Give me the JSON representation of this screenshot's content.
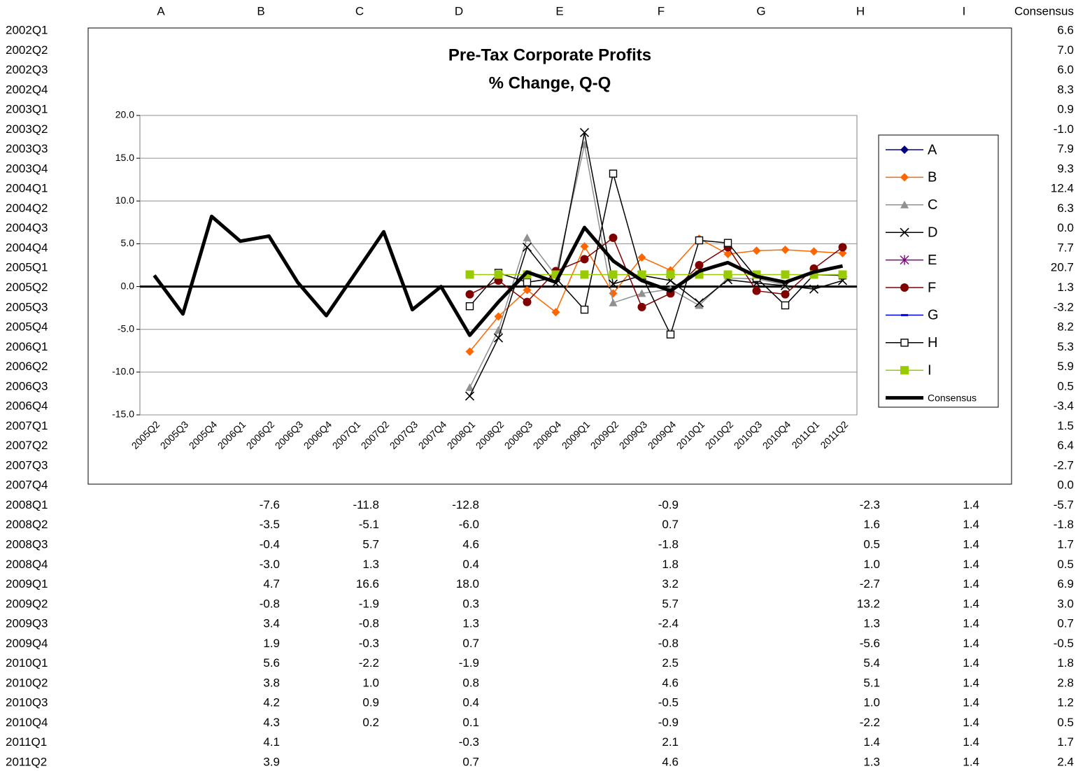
{
  "sheet": {
    "columns": [
      "A",
      "B",
      "C",
      "D",
      "E",
      "F",
      "G",
      "H",
      "I",
      "Consensus"
    ],
    "rows": [
      {
        "label": "2002Q1",
        "cells": [
          null,
          null,
          null,
          null,
          null,
          null,
          null,
          null,
          null,
          "6.6"
        ]
      },
      {
        "label": "2002Q2",
        "cells": [
          null,
          null,
          null,
          null,
          null,
          null,
          null,
          null,
          null,
          "7.0"
        ]
      },
      {
        "label": "2002Q3",
        "cells": [
          null,
          null,
          null,
          null,
          null,
          null,
          null,
          null,
          null,
          "6.0"
        ]
      },
      {
        "label": "2002Q4",
        "cells": [
          null,
          null,
          null,
          null,
          null,
          null,
          null,
          null,
          null,
          "8.3"
        ]
      },
      {
        "label": "2003Q1",
        "cells": [
          null,
          null,
          null,
          null,
          null,
          null,
          null,
          null,
          null,
          "0.9"
        ]
      },
      {
        "label": "2003Q2",
        "cells": [
          null,
          null,
          null,
          null,
          null,
          null,
          null,
          null,
          null,
          "-1.0"
        ]
      },
      {
        "label": "2003Q3",
        "cells": [
          null,
          null,
          null,
          null,
          null,
          null,
          null,
          null,
          null,
          "7.9"
        ]
      },
      {
        "label": "2003Q4",
        "cells": [
          null,
          null,
          null,
          null,
          null,
          null,
          null,
          null,
          null,
          "9.3"
        ]
      },
      {
        "label": "2004Q1",
        "cells": [
          null,
          null,
          null,
          null,
          null,
          null,
          null,
          null,
          null,
          "12.4"
        ]
      },
      {
        "label": "2004Q2",
        "cells": [
          null,
          null,
          null,
          null,
          null,
          null,
          null,
          null,
          null,
          "6.3"
        ]
      },
      {
        "label": "2004Q3",
        "cells": [
          null,
          null,
          null,
          null,
          null,
          null,
          null,
          null,
          null,
          "0.0"
        ]
      },
      {
        "label": "2004Q4",
        "cells": [
          null,
          null,
          null,
          null,
          null,
          null,
          null,
          null,
          null,
          "7.7"
        ]
      },
      {
        "label": "2005Q1",
        "cells": [
          null,
          null,
          null,
          null,
          null,
          null,
          null,
          null,
          null,
          "20.7"
        ]
      },
      {
        "label": "2005Q2",
        "cells": [
          null,
          null,
          null,
          null,
          null,
          null,
          null,
          null,
          null,
          "1.3"
        ]
      },
      {
        "label": "2005Q3",
        "cells": [
          null,
          null,
          null,
          null,
          null,
          null,
          null,
          null,
          null,
          "-3.2"
        ]
      },
      {
        "label": "2005Q4",
        "cells": [
          null,
          null,
          null,
          null,
          null,
          null,
          null,
          null,
          null,
          "8.2"
        ]
      },
      {
        "label": "2006Q1",
        "cells": [
          null,
          null,
          null,
          null,
          null,
          null,
          null,
          null,
          null,
          "5.3"
        ]
      },
      {
        "label": "2006Q2",
        "cells": [
          null,
          null,
          null,
          null,
          null,
          null,
          null,
          null,
          null,
          "5.9"
        ]
      },
      {
        "label": "2006Q3",
        "cells": [
          null,
          null,
          null,
          null,
          null,
          null,
          null,
          null,
          null,
          "0.5"
        ]
      },
      {
        "label": "2006Q4",
        "cells": [
          null,
          null,
          null,
          null,
          null,
          null,
          null,
          null,
          null,
          "-3.4"
        ]
      },
      {
        "label": "2007Q1",
        "cells": [
          null,
          null,
          null,
          null,
          null,
          null,
          null,
          null,
          null,
          "1.5"
        ]
      },
      {
        "label": "2007Q2",
        "cells": [
          null,
          null,
          null,
          null,
          null,
          null,
          null,
          null,
          null,
          "6.4"
        ]
      },
      {
        "label": "2007Q3",
        "cells": [
          null,
          null,
          null,
          null,
          null,
          null,
          null,
          null,
          null,
          "-2.7"
        ]
      },
      {
        "label": "2007Q4",
        "cells": [
          null,
          null,
          null,
          null,
          null,
          null,
          null,
          null,
          null,
          "0.0"
        ]
      },
      {
        "label": "2008Q1",
        "cells": [
          null,
          "-7.6",
          "-11.8",
          "-12.8",
          null,
          "-0.9",
          null,
          "-2.3",
          "1.4",
          "-5.7"
        ]
      },
      {
        "label": "2008Q2",
        "cells": [
          null,
          "-3.5",
          "-5.1",
          "-6.0",
          null,
          "0.7",
          null,
          "1.6",
          "1.4",
          "-1.8"
        ]
      },
      {
        "label": "2008Q3",
        "cells": [
          null,
          "-0.4",
          "5.7",
          "4.6",
          null,
          "-1.8",
          null,
          "0.5",
          "1.4",
          "1.7"
        ]
      },
      {
        "label": "2008Q4",
        "cells": [
          null,
          "-3.0",
          "1.3",
          "0.4",
          null,
          "1.8",
          null,
          "1.0",
          "1.4",
          "0.5"
        ]
      },
      {
        "label": "2009Q1",
        "cells": [
          null,
          "4.7",
          "16.6",
          "18.0",
          null,
          "3.2",
          null,
          "-2.7",
          "1.4",
          "6.9"
        ]
      },
      {
        "label": "2009Q2",
        "cells": [
          null,
          "-0.8",
          "-1.9",
          "0.3",
          null,
          "5.7",
          null,
          "13.2",
          "1.4",
          "3.0"
        ]
      },
      {
        "label": "2009Q3",
        "cells": [
          null,
          "3.4",
          "-0.8",
          "1.3",
          null,
          "-2.4",
          null,
          "1.3",
          "1.4",
          "0.7"
        ]
      },
      {
        "label": "2009Q4",
        "cells": [
          null,
          "1.9",
          "-0.3",
          "0.7",
          null,
          "-0.8",
          null,
          "-5.6",
          "1.4",
          "-0.5"
        ]
      },
      {
        "label": "2010Q1",
        "cells": [
          null,
          "5.6",
          "-2.2",
          "-1.9",
          null,
          "2.5",
          null,
          "5.4",
          "1.4",
          "1.8"
        ]
      },
      {
        "label": "2010Q2",
        "cells": [
          null,
          "3.8",
          "1.0",
          "0.8",
          null,
          "4.6",
          null,
          "5.1",
          "1.4",
          "2.8"
        ]
      },
      {
        "label": "2010Q3",
        "cells": [
          null,
          "4.2",
          "0.9",
          "0.4",
          null,
          "-0.5",
          null,
          "1.0",
          "1.4",
          "1.2"
        ]
      },
      {
        "label": "2010Q4",
        "cells": [
          null,
          "4.3",
          "0.2",
          "0.1",
          null,
          "-0.9",
          null,
          "-2.2",
          "1.4",
          "0.5"
        ]
      },
      {
        "label": "2011Q1",
        "cells": [
          null,
          "4.1",
          null,
          "-0.3",
          null,
          "2.1",
          null,
          "1.4",
          "1.4",
          "1.7"
        ]
      },
      {
        "label": "2011Q2",
        "cells": [
          null,
          "3.9",
          null,
          "0.7",
          null,
          "4.6",
          null,
          "1.3",
          "1.4",
          "2.4"
        ]
      }
    ]
  },
  "chart_data": {
    "type": "line",
    "title": "Pre-Tax Corporate Profits",
    "subtitle": "% Change, Q-Q",
    "categories": [
      "2005Q2",
      "2005Q3",
      "2005Q4",
      "2006Q1",
      "2006Q2",
      "2006Q3",
      "2006Q4",
      "2007Q1",
      "2007Q2",
      "2007Q3",
      "2007Q4",
      "2008Q1",
      "2008Q2",
      "2008Q3",
      "2008Q4",
      "2009Q1",
      "2009Q2",
      "2009Q3",
      "2009Q4",
      "2010Q1",
      "2010Q2",
      "2010Q3",
      "2010Q4",
      "2011Q1",
      "2011Q2"
    ],
    "ylim": [
      -15,
      20
    ],
    "yticks": [
      {
        "value": -15,
        "label": "-15.0"
      },
      {
        "value": -10,
        "label": "-10.0"
      },
      {
        "value": -5,
        "label": "-5.0"
      },
      {
        "value": 0,
        "label": "0.0"
      },
      {
        "value": 5,
        "label": "5.0"
      },
      {
        "value": 10,
        "label": "10.0"
      },
      {
        "value": 15,
        "label": "15.0"
      },
      {
        "value": 20,
        "label": "20.0"
      }
    ],
    "grid": true,
    "legend": "right",
    "series": [
      {
        "name": "A",
        "color": "#000080",
        "marker": "diamond",
        "values": [
          null,
          null,
          null,
          null,
          null,
          null,
          null,
          null,
          null,
          null,
          null,
          null,
          null,
          null,
          null,
          null,
          null,
          null,
          null,
          null,
          null,
          null,
          null,
          null,
          null
        ]
      },
      {
        "name": "B",
        "color": "#ff6600",
        "marker": "diamond",
        "values": [
          null,
          null,
          null,
          null,
          null,
          null,
          null,
          null,
          null,
          null,
          null,
          -7.6,
          -3.5,
          -0.4,
          -3.0,
          4.7,
          -0.8,
          3.4,
          1.9,
          5.6,
          3.8,
          4.2,
          4.3,
          4.1,
          3.9
        ]
      },
      {
        "name": "C",
        "color": "#909090",
        "marker": "triangle",
        "values": [
          null,
          null,
          null,
          null,
          null,
          null,
          null,
          null,
          null,
          null,
          null,
          -11.8,
          -5.1,
          5.7,
          1.3,
          16.6,
          -1.9,
          -0.8,
          -0.3,
          -2.2,
          1.0,
          0.9,
          0.2,
          null,
          null
        ]
      },
      {
        "name": "D",
        "color": "#000000",
        "marker": "x",
        "values": [
          null,
          null,
          null,
          null,
          null,
          null,
          null,
          null,
          null,
          null,
          null,
          -12.8,
          -6.0,
          4.6,
          0.4,
          18.0,
          0.3,
          1.3,
          0.7,
          -1.9,
          0.8,
          0.4,
          0.1,
          -0.3,
          0.7
        ]
      },
      {
        "name": "E",
        "color": "#800080",
        "marker": "star",
        "values": [
          null,
          null,
          null,
          null,
          null,
          null,
          null,
          null,
          null,
          null,
          null,
          null,
          null,
          null,
          null,
          null,
          null,
          null,
          null,
          null,
          null,
          null,
          null,
          null,
          null
        ]
      },
      {
        "name": "F",
        "color": "#800000",
        "marker": "circle",
        "values": [
          null,
          null,
          null,
          null,
          null,
          null,
          null,
          null,
          null,
          null,
          null,
          -0.9,
          0.7,
          -1.8,
          1.8,
          3.2,
          5.7,
          -2.4,
          -0.8,
          2.5,
          4.6,
          -0.5,
          -0.9,
          2.1,
          4.6
        ]
      },
      {
        "name": "G",
        "color": "#0000ff",
        "marker": "dash",
        "values": [
          null,
          null,
          null,
          null,
          null,
          null,
          null,
          null,
          null,
          null,
          null,
          null,
          null,
          null,
          null,
          null,
          null,
          null,
          null,
          null,
          null,
          null,
          null,
          null,
          null
        ]
      },
      {
        "name": "H",
        "color": "#000000",
        "marker": "square-open",
        "values": [
          null,
          null,
          null,
          null,
          null,
          null,
          null,
          null,
          null,
          null,
          null,
          -2.3,
          1.6,
          0.5,
          1.0,
          -2.7,
          13.2,
          1.3,
          -5.6,
          5.4,
          5.1,
          1.0,
          -2.2,
          1.4,
          1.3
        ]
      },
      {
        "name": "I",
        "color": "#99cc00",
        "marker": "square",
        "values": [
          null,
          null,
          null,
          null,
          null,
          null,
          null,
          null,
          null,
          null,
          null,
          1.4,
          1.4,
          1.4,
          1.4,
          1.4,
          1.4,
          1.4,
          1.4,
          1.4,
          1.4,
          1.4,
          1.4,
          1.4,
          1.4
        ]
      },
      {
        "name": "Consensus",
        "color": "#000000",
        "marker": "none",
        "linewidth": 5,
        "values": [
          1.3,
          -3.2,
          8.2,
          5.3,
          5.9,
          0.5,
          -3.4,
          1.5,
          6.4,
          -2.7,
          0.0,
          -5.7,
          -1.8,
          1.7,
          0.5,
          6.9,
          3.0,
          0.7,
          -0.5,
          1.8,
          2.8,
          1.2,
          0.5,
          1.7,
          2.4
        ]
      }
    ]
  }
}
